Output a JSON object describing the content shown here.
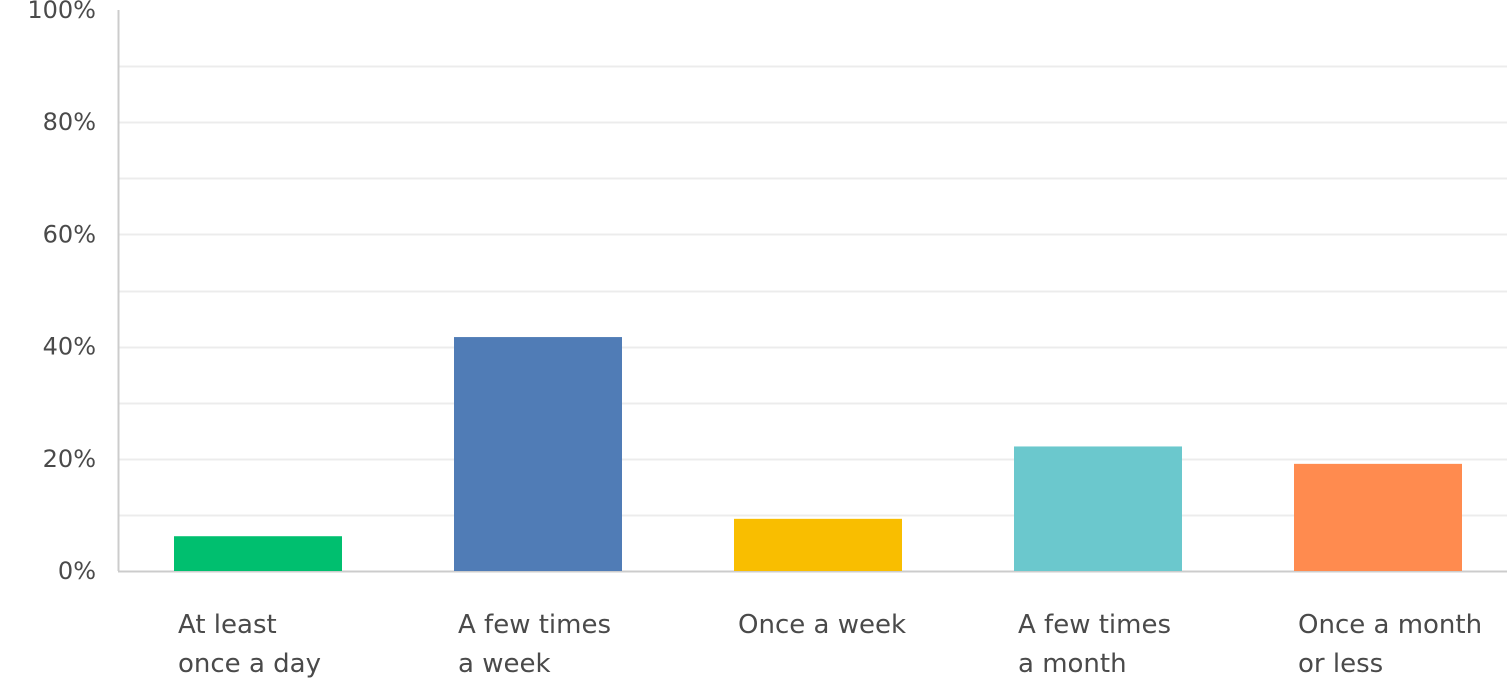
{
  "chart_data": {
    "type": "bar",
    "categories": [
      [
        "At least",
        "once a day"
      ],
      [
        "A few times",
        "a week"
      ],
      [
        "Once a week"
      ],
      [
        "A few times",
        "a month"
      ],
      [
        "Once a month",
        "or less"
      ]
    ],
    "values": [
      6.2,
      41.7,
      9.3,
      22.2,
      19.1
    ],
    "colors": [
      "#00bf6f",
      "#507cb6",
      "#f9be00",
      "#6bc8cd",
      "#ff8b4f"
    ],
    "ylim": [
      0,
      100
    ],
    "yticks": [
      0,
      20,
      40,
      60,
      80,
      100
    ],
    "ytick_labels": [
      "0%",
      "20%",
      "40%",
      "60%",
      "80%",
      "100%"
    ],
    "grid": true,
    "grid_color": "#ececec",
    "axis_color": "#cccccc"
  }
}
